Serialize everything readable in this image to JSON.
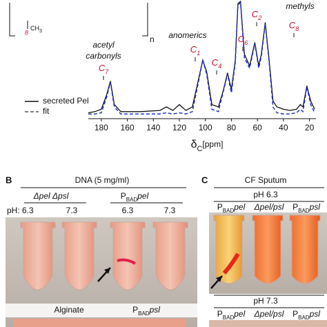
{
  "chart_data": {
    "type": "line",
    "x": [
      190,
      185,
      180,
      176,
      173,
      170,
      165,
      150,
      135,
      130,
      125,
      120,
      115,
      110,
      105,
      102,
      99,
      95,
      90,
      86,
      83,
      80,
      77,
      75,
      73,
      70,
      66,
      62,
      59,
      57,
      54,
      51,
      48,
      45,
      40,
      35,
      30,
      27,
      25,
      22,
      19,
      16
    ],
    "series": [
      {
        "name": "secreted Pel",
        "color": "#111111",
        "values": [
          0.05,
          0.06,
          0.08,
          0.2,
          0.32,
          0.12,
          0.06,
          0.06,
          0.07,
          0.1,
          0.07,
          0.12,
          0.07,
          0.1,
          0.35,
          0.5,
          0.4,
          0.12,
          0.1,
          0.25,
          0.39,
          0.25,
          0.5,
          0.98,
          1.0,
          0.55,
          0.45,
          0.65,
          0.45,
          0.55,
          0.82,
          0.5,
          0.15,
          0.1,
          0.08,
          0.07,
          0.08,
          0.12,
          0.1,
          0.28,
          0.15,
          0.08
        ]
      },
      {
        "name": "fit",
        "color": "#2233cc",
        "values": [
          0.04,
          0.04,
          0.05,
          0.18,
          0.31,
          0.1,
          0.04,
          0.04,
          0.04,
          0.05,
          0.04,
          0.05,
          0.04,
          0.06,
          0.33,
          0.5,
          0.38,
          0.08,
          0.06,
          0.24,
          0.38,
          0.22,
          0.48,
          0.97,
          0.99,
          0.52,
          0.43,
          0.64,
          0.43,
          0.53,
          0.81,
          0.48,
          0.1,
          0.05,
          0.04,
          0.04,
          0.05,
          0.08,
          0.06,
          0.27,
          0.12,
          0.05
        ]
      }
    ],
    "xlim": [
      190,
      15
    ],
    "ylim": [
      0,
      1
    ],
    "xticks": [
      180,
      160,
      140,
      120,
      100,
      80,
      60,
      40,
      20
    ],
    "xlabel": {
      "main": "δ",
      "sub": "C",
      "unit": "[ppm]"
    },
    "annotations": {
      "acetyl": "acetyl",
      "carbonyls": "carbonyls",
      "anomerics": "anomerics",
      "methyls": "methyls",
      "c7": {
        "main": "C",
        "sub": "7"
      },
      "c1": {
        "main": "C",
        "sub": "1"
      },
      "c4": {
        "main": "C",
        "sub": "4"
      },
      "c6": {
        "main": "C",
        "sub": "6"
      },
      "c2": {
        "main": "C",
        "sub": "2"
      },
      "c8": {
        "main": "C",
        "sub": "8"
      }
    },
    "structure": {
      "atom": "8",
      "group": {
        "main": "CH",
        "sub": "3"
      },
      "repeat": "n"
    }
  },
  "panel_b": {
    "letter": "B",
    "title": "DNA (5 mg/ml)",
    "strain1": "Δpel Δpsl",
    "strain2": {
      "p": "P",
      "sub": "BAD",
      "name": "pel"
    },
    "ph_label": "pH: 6.3",
    "ph2": "7.3",
    "ph3": "6.3",
    "ph4": "7.3",
    "bottom1": "Alginate",
    "bottom2": {
      "p": "P",
      "sub": "BAD",
      "name": "psl"
    }
  },
  "panel_c": {
    "letter": "C",
    "title": "CF Sputum",
    "ph_top": "pH 6.3",
    "col1": {
      "p": "P",
      "sub": "BAD",
      "name": "pel"
    },
    "col2": "Δpel/psl",
    "col3": {
      "p": "P",
      "sub": "BAD",
      "name": "psl"
    },
    "ph_bottom": "pH 7.3",
    "col4": {
      "p": "P",
      "sub": "BAD",
      "name": "pel"
    },
    "col5": "Δpel/psl",
    "col6": {
      "p": "P",
      "sub": "BAD",
      "name": "psl"
    }
  }
}
